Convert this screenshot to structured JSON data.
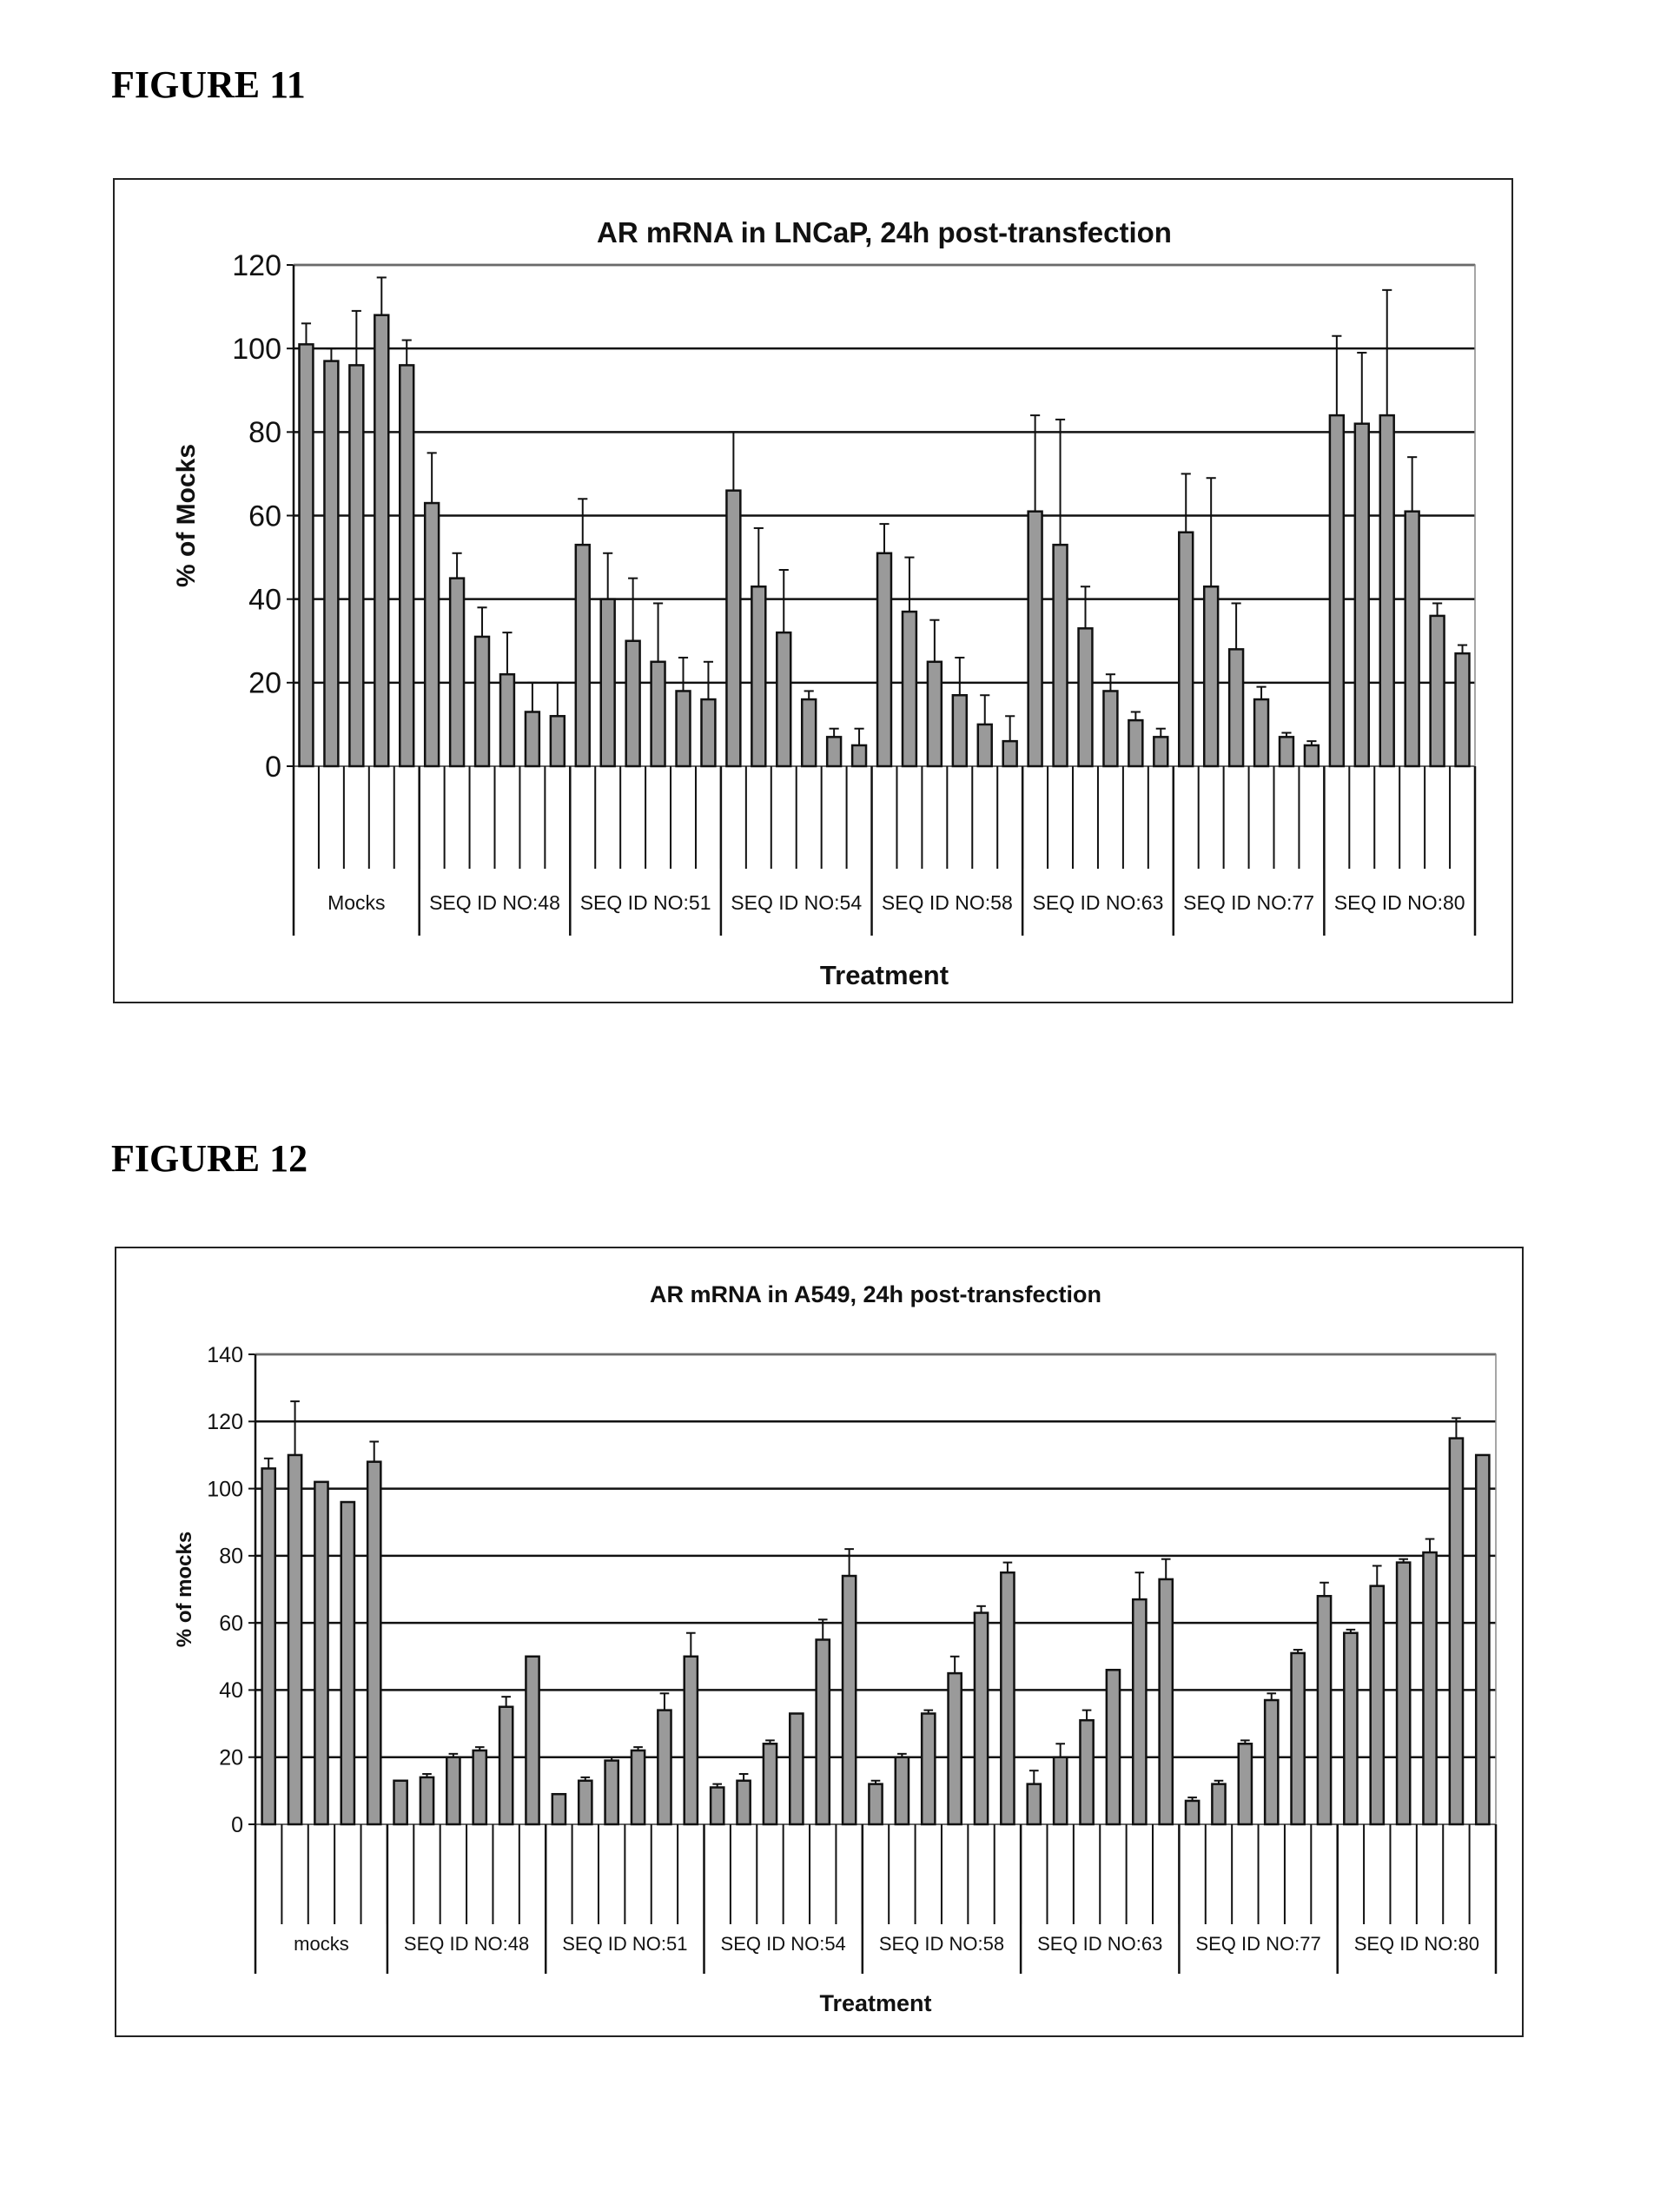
{
  "figures": [
    {
      "label": "FIGURE 11"
    },
    {
      "label": "FIGURE 12"
    }
  ],
  "colors": {
    "bar": "#9a9a9a",
    "bar_stroke": "#111111",
    "grid": "#111111",
    "frame": "#222222"
  },
  "chart_data": [
    {
      "type": "bar",
      "title": "AR mRNA in LNCaP, 24h post-transfection",
      "xlabel": "Treatment",
      "ylabel": "% of Mocks",
      "ylim": [
        0,
        120
      ],
      "yticks": [
        0,
        20,
        40,
        60,
        80,
        100,
        120
      ],
      "grid": true,
      "groups": [
        {
          "label": "Mocks",
          "values": [
            101,
            97,
            96,
            108,
            96
          ],
          "errors": [
            5,
            3,
            13,
            9,
            6
          ]
        },
        {
          "label": "SEQ ID NO:48",
          "values": [
            63,
            45,
            31,
            22,
            13,
            12
          ],
          "errors": [
            12,
            6,
            7,
            10,
            7,
            8
          ]
        },
        {
          "label": "SEQ ID NO:51",
          "values": [
            53,
            40,
            30,
            25,
            18,
            16
          ],
          "errors": [
            11,
            11,
            15,
            14,
            8,
            9
          ]
        },
        {
          "label": "SEQ ID NO:54",
          "values": [
            66,
            43,
            32,
            16,
            7,
            5
          ],
          "errors": [
            14,
            14,
            15,
            2,
            2,
            4
          ]
        },
        {
          "label": "SEQ ID NO:58",
          "values": [
            51,
            37,
            25,
            17,
            10,
            6
          ],
          "errors": [
            7,
            13,
            10,
            9,
            7,
            6
          ]
        },
        {
          "label": "SEQ ID NO:63",
          "values": [
            61,
            53,
            33,
            18,
            11,
            7
          ],
          "errors": [
            23,
            30,
            10,
            4,
            2,
            2
          ]
        },
        {
          "label": "SEQ ID NO:77",
          "values": [
            56,
            43,
            28,
            16,
            7,
            5
          ],
          "errors": [
            14,
            26,
            11,
            3,
            1,
            1
          ]
        },
        {
          "label": "SEQ ID NO:80",
          "values": [
            84,
            82,
            84,
            61,
            36,
            27
          ],
          "errors": [
            19,
            17,
            30,
            13,
            3,
            2
          ]
        }
      ]
    },
    {
      "type": "bar",
      "title": "AR mRNA in A549, 24h post-transfection",
      "xlabel": "Treatment",
      "ylabel": "% of mocks",
      "ylim": [
        0,
        140
      ],
      "yticks": [
        0,
        20,
        40,
        60,
        80,
        100,
        120,
        140
      ],
      "grid": true,
      "groups": [
        {
          "label": "mocks",
          "values": [
            106,
            110,
            102,
            96,
            108
          ],
          "errors": [
            3,
            16,
            0,
            0,
            6
          ]
        },
        {
          "label": "SEQ ID NO:48",
          "values": [
            13,
            14,
            20,
            22,
            35,
            50
          ],
          "errors": [
            0,
            1,
            1,
            1,
            3,
            0
          ]
        },
        {
          "label": "SEQ ID NO:51",
          "values": [
            9,
            13,
            19,
            22,
            34,
            50
          ],
          "errors": [
            0,
            1,
            1,
            1,
            5,
            7
          ]
        },
        {
          "label": "SEQ ID NO:54",
          "values": [
            11,
            13,
            24,
            33,
            55,
            74
          ],
          "errors": [
            1,
            2,
            1,
            0,
            6,
            8
          ]
        },
        {
          "label": "SEQ ID NO:58",
          "values": [
            12,
            20,
            33,
            45,
            63,
            75
          ],
          "errors": [
            1,
            1,
            1,
            5,
            2,
            3
          ]
        },
        {
          "label": "SEQ ID NO:63",
          "values": [
            12,
            20,
            31,
            46,
            67,
            73
          ],
          "errors": [
            4,
            4,
            3,
            0,
            8,
            6
          ]
        },
        {
          "label": "SEQ ID NO:77",
          "values": [
            7,
            12,
            24,
            37,
            51,
            68
          ],
          "errors": [
            1,
            1,
            1,
            2,
            1,
            4
          ]
        },
        {
          "label": "SEQ ID NO:80",
          "values": [
            57,
            71,
            78,
            81,
            115,
            110
          ],
          "errors": [
            1,
            6,
            1,
            4,
            6,
            0
          ]
        }
      ]
    }
  ]
}
